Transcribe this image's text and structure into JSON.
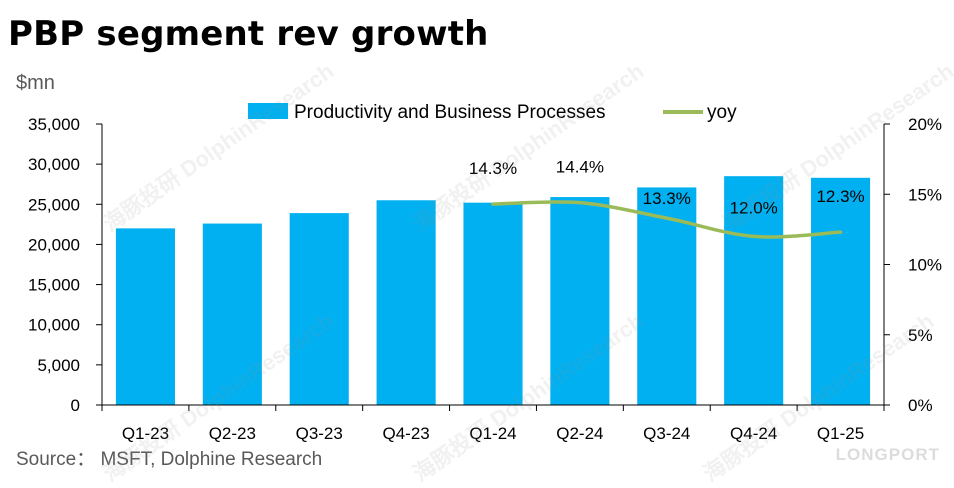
{
  "chart_data": {
    "type": "bar",
    "title": "PBP segment rev growth",
    "ylabel": "$mn",
    "categories": [
      "Q1-23",
      "Q2-23",
      "Q3-23",
      "Q4-23",
      "Q1-24",
      "Q2-24",
      "Q3-24",
      "Q4-24",
      "Q1-25"
    ],
    "series": [
      {
        "name": "Productivity and Business Processes",
        "type": "bar",
        "axis": "left",
        "color": "#00B0F0",
        "values": [
          22000,
          22600,
          23900,
          25500,
          25200,
          25900,
          27100,
          28500,
          28300
        ]
      },
      {
        "name": "yoy",
        "type": "line",
        "axis": "right",
        "color": "#9BBB59",
        "x": [
          "Q1-24",
          "Q2-24",
          "Q3-24",
          "Q4-24",
          "Q1-25"
        ],
        "values": [
          14.3,
          14.4,
          13.3,
          12.0,
          12.3
        ],
        "data_labels": [
          "14.3%",
          "14.4%",
          "13.3%",
          "12.0%",
          "12.3%"
        ]
      }
    ],
    "ylim": [
      0,
      35000
    ],
    "y2lim": [
      0,
      20
    ],
    "y_ticks": [
      "0",
      "5,000",
      "10,000",
      "15,000",
      "20,000",
      "25,000",
      "30,000",
      "35,000"
    ],
    "y2_ticks": [
      "0%",
      "5%",
      "10%",
      "15%",
      "20%"
    ],
    "legend": "top-center",
    "grid": false
  },
  "source": "Source：  MSFT, Dolphine Research",
  "watermarks": [
    "海豚投研",
    "DolphinResearch"
  ],
  "logo": "LONGPORT"
}
